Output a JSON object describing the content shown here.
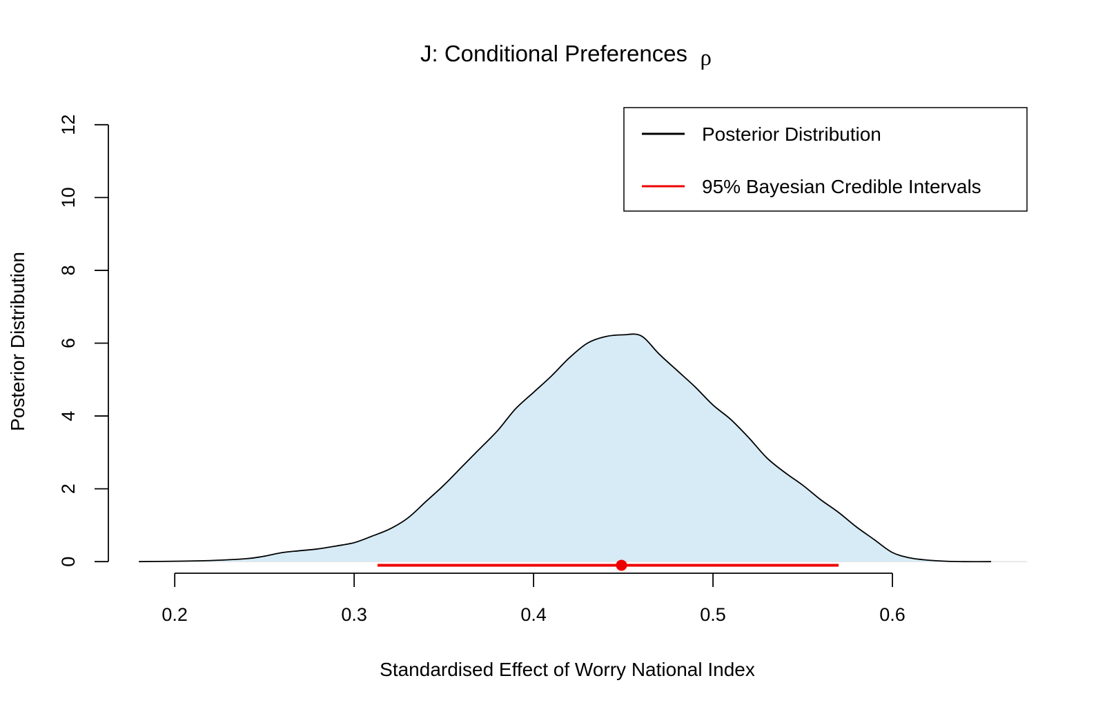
{
  "chart_data": {
    "type": "area",
    "title": "J: Conditional Preferences",
    "title_symbol": "ρ",
    "xlabel": "Standardised Effect of Worry National Index",
    "ylabel": "Posterior Distribution",
    "xlim": [
      0.163,
      0.675
    ],
    "ylim": [
      -0.3,
      12.3
    ],
    "x_ticks": [
      0.2,
      0.3,
      0.4,
      0.5,
      0.6
    ],
    "x_tick_labels": [
      "0.2",
      "0.3",
      "0.4",
      "0.5",
      "0.6"
    ],
    "y_ticks": [
      0,
      2,
      4,
      6,
      8,
      10,
      12
    ],
    "y_tick_labels": [
      "0",
      "2",
      "4",
      "6",
      "8",
      "10",
      "12"
    ],
    "grid": false,
    "legend_position": "top-right",
    "colors": {
      "fill": "#d6ebf5",
      "density_line": "#000000",
      "interval": "#ee0000",
      "baseline": "#d8d8d8"
    },
    "legend": [
      {
        "label": "Posterior Distribution",
        "color": "#000000"
      },
      {
        "label": "95% Bayesian Credible Intervals",
        "color": "#ee0000"
      }
    ],
    "series": [
      {
        "name": "Posterior Distribution",
        "x": [
          0.18,
          0.2,
          0.22,
          0.24,
          0.25,
          0.26,
          0.27,
          0.28,
          0.29,
          0.3,
          0.31,
          0.32,
          0.33,
          0.34,
          0.35,
          0.36,
          0.37,
          0.38,
          0.39,
          0.4,
          0.41,
          0.42,
          0.43,
          0.44,
          0.45,
          0.46,
          0.47,
          0.48,
          0.49,
          0.5,
          0.51,
          0.52,
          0.53,
          0.54,
          0.55,
          0.56,
          0.57,
          0.58,
          0.59,
          0.6,
          0.61,
          0.62,
          0.63,
          0.64,
          0.655
        ],
        "y": [
          0.0,
          0.01,
          0.03,
          0.08,
          0.15,
          0.25,
          0.3,
          0.35,
          0.43,
          0.52,
          0.7,
          0.9,
          1.2,
          1.65,
          2.1,
          2.6,
          3.1,
          3.6,
          4.2,
          4.65,
          5.1,
          5.6,
          6.0,
          6.18,
          6.23,
          6.2,
          5.7,
          5.25,
          4.8,
          4.3,
          3.9,
          3.4,
          2.85,
          2.45,
          2.1,
          1.7,
          1.35,
          0.95,
          0.6,
          0.25,
          0.1,
          0.04,
          0.01,
          0.0,
          0.0
        ]
      }
    ],
    "credible_interval": {
      "lower": 0.313,
      "upper": 0.57,
      "point_estimate": 0.449,
      "y": -0.1
    }
  }
}
